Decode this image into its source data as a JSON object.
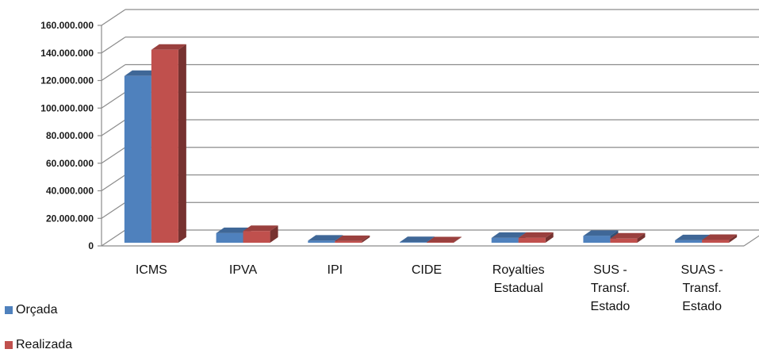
{
  "chart_data": {
    "type": "bar",
    "categories": [
      "ICMS",
      "IPVA",
      "IPI",
      "CIDE",
      "Royalties Estadual",
      "SUS - Transf. Estado",
      "SUAS - Transf. Estado"
    ],
    "category_lines": [
      [
        "ICMS"
      ],
      [
        "IPVA"
      ],
      [
        "IPI"
      ],
      [
        "CIDE"
      ],
      [
        "Royalties",
        "Estadual"
      ],
      [
        "SUS -",
        "Transf.",
        "Estado"
      ],
      [
        "SUAS -",
        "Transf.",
        "Estado"
      ]
    ],
    "series": [
      {
        "name": "Orçada",
        "color": "#4f81bd",
        "values": [
          121000000,
          7000000,
          1500000,
          400000,
          3500000,
          5000000,
          1800000
        ]
      },
      {
        "name": "Realizada",
        "color": "#c0504d",
        "values": [
          140000000,
          8500000,
          1200000,
          300000,
          3500000,
          3000000,
          2000000
        ]
      }
    ],
    "ylim": [
      0,
      160000000
    ],
    "yticks": [
      0,
      20000000,
      40000000,
      60000000,
      80000000,
      100000000,
      120000000,
      140000000,
      160000000
    ],
    "ytick_labels": [
      "0",
      "20.000.000",
      "40.000.000",
      "60.000.000",
      "80.000.000",
      "100.000.000",
      "120.000.000",
      "140.000.000",
      "160.000.000"
    ],
    "grid": true,
    "legend_position": "bottom-left",
    "title": "",
    "xlabel": "",
    "ylabel": ""
  }
}
